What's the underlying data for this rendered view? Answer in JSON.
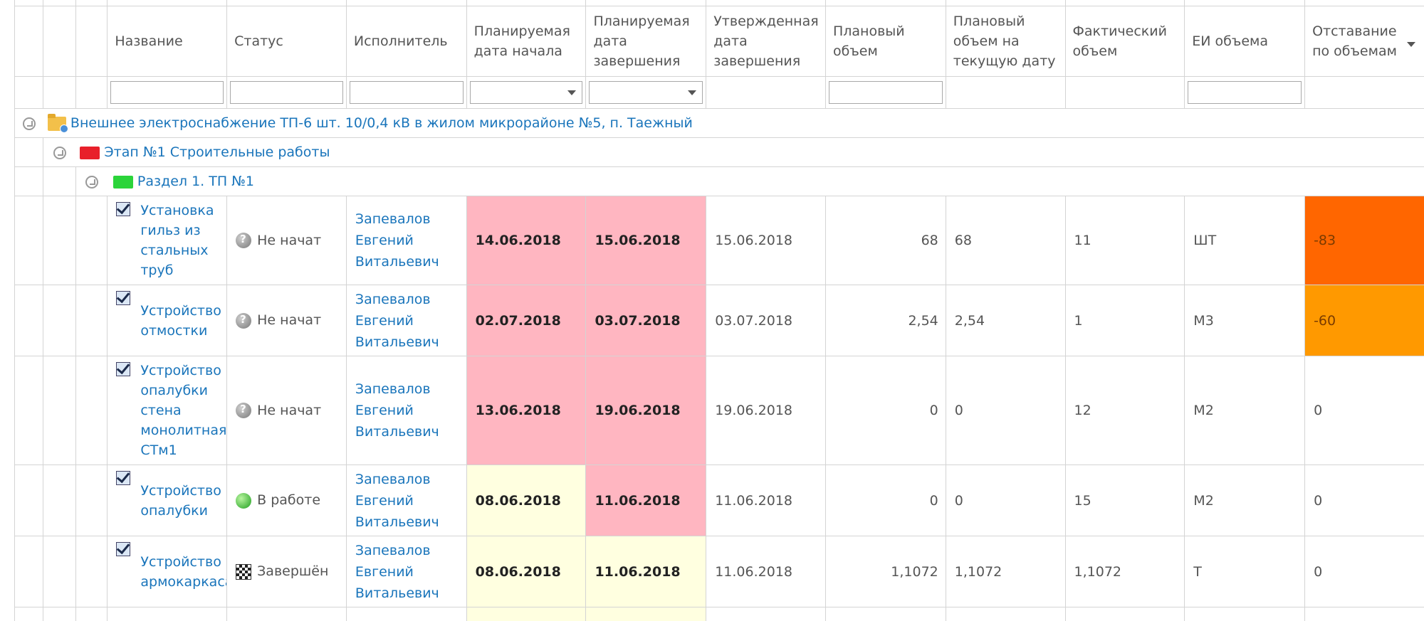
{
  "columns": [
    {
      "key": "name",
      "label": "Название"
    },
    {
      "key": "status",
      "label": "Статус"
    },
    {
      "key": "performer",
      "label": "Исполнитель"
    },
    {
      "key": "plan_start",
      "label": "Планируемая дата начала"
    },
    {
      "key": "plan_end",
      "label": "Планируемая дата завершения"
    },
    {
      "key": "approved_end",
      "label": "Утвержденная дата завершения"
    },
    {
      "key": "plan_volume",
      "label": "Плановый объем"
    },
    {
      "key": "plan_volume_current",
      "label": "Плановый объем на текущую дату"
    },
    {
      "key": "actual_volume",
      "label": "Фактический объем"
    },
    {
      "key": "unit",
      "label": "ЕИ объема"
    },
    {
      "key": "lag",
      "label": "Отставание по объемам"
    }
  ],
  "groups": {
    "project": "Внешнее электроснабжение ТП-6 шт. 10/0,4 кВ в жилом микрорайоне №5, п. Таежный",
    "stage": "Этап №1 Строительные работы",
    "section": "Раздел 1. ТП №1"
  },
  "rows": [
    {
      "name": "Установка гильз из стальных труб",
      "status": "Не начат",
      "status_icon": "question-icon",
      "performer": "Запевалов Евгений Витальевич",
      "plan_start": "14.06.2018",
      "plan_end": "15.06.2018",
      "approved_end": "15.06.2018",
      "plan_volume": "68",
      "plan_volume_current": "68",
      "actual_volume": "11",
      "unit": "ШТ",
      "lag": "-83",
      "start_color": "pink",
      "end_color": "pink",
      "lag_color": "hot"
    },
    {
      "name": "Устройство отмостки",
      "status": "Не начат",
      "status_icon": "question-icon",
      "performer": "Запевалов Евгений Витальевич",
      "plan_start": "02.07.2018",
      "plan_end": "03.07.2018",
      "approved_end": "03.07.2018",
      "plan_volume": "2,54",
      "plan_volume_current": "2,54",
      "actual_volume": "1",
      "unit": "М3",
      "lag": "-60",
      "start_color": "pink",
      "end_color": "pink",
      "lag_color": "warm"
    },
    {
      "name": "Устройство опалубки стена монолитная СТм1",
      "status": "Не начат",
      "status_icon": "question-icon",
      "performer": "Запевалов Евгений Витальевич",
      "plan_start": "13.06.2018",
      "plan_end": "19.06.2018",
      "approved_end": "19.06.2018",
      "plan_volume": "0",
      "plan_volume_current": "0",
      "actual_volume": "12",
      "unit": "М2",
      "lag": "0",
      "start_color": "pink",
      "end_color": "pink",
      "lag_color": "none"
    },
    {
      "name": "Устройство опалубки",
      "status": "В работе",
      "status_icon": "green-ball-icon",
      "performer": "Запевалов Евгений Витальевич",
      "plan_start": "08.06.2018",
      "plan_end": "11.06.2018",
      "approved_end": "11.06.2018",
      "plan_volume": "0",
      "plan_volume_current": "0",
      "actual_volume": "15",
      "unit": "М2",
      "lag": "0",
      "start_color": "cream",
      "end_color": "pink",
      "lag_color": "none"
    },
    {
      "name": "Устройство армокаркаса",
      "status": "Завершён",
      "status_icon": "checkered-flag-icon",
      "performer": "Запевалов Евгений Витальевич",
      "plan_start": "08.06.2018",
      "plan_end": "11.06.2018",
      "approved_end": "11.06.2018",
      "plan_volume": "1,1072",
      "plan_volume_current": "1,1072",
      "actual_volume": "1,1072",
      "unit": "Т",
      "lag": "0",
      "start_color": "cream",
      "end_color": "cream",
      "lag_color": "none"
    }
  ],
  "colors": {
    "pink": "#ffb6c1",
    "cream": "#ffffe0",
    "hot": "#ff6600",
    "warm": "#ff9900",
    "link": "#1a75bb"
  }
}
